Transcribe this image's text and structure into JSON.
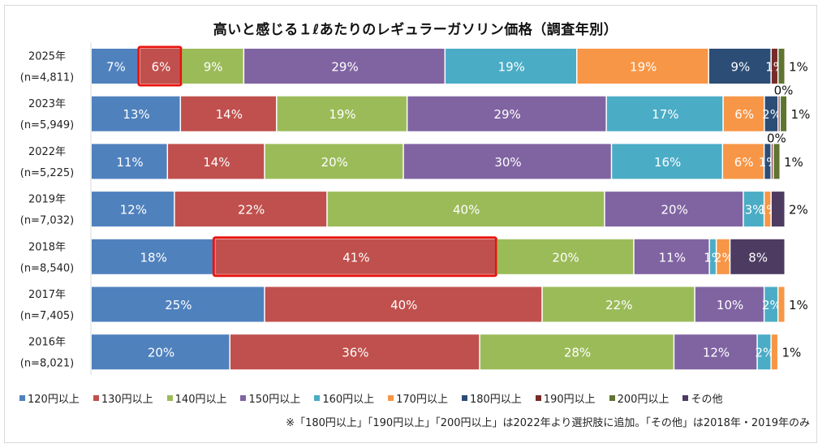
{
  "chart_data": {
    "type": "bar",
    "orientation": "horizontal",
    "stacked": "percent",
    "title": "高いと感じる１ℓあたりのレギュラーガソリン価格（調査年別）",
    "xlabel": "",
    "ylabel": "",
    "xlim": [
      0,
      100
    ],
    "grid": false,
    "legend_position": "bottom",
    "categories": [
      {
        "year": "2025年",
        "n": "(n=4,811)"
      },
      {
        "year": "2023年",
        "n": "(n=5,949)"
      },
      {
        "year": "2022年",
        "n": "(n=5,225)"
      },
      {
        "year": "2019年",
        "n": "(n=7,032)"
      },
      {
        "year": "2018年",
        "n": "(n=8,540)"
      },
      {
        "year": "2017年",
        "n": "(n=7,405)"
      },
      {
        "year": "2016年",
        "n": "(n=8,021)"
      }
    ],
    "series": [
      {
        "name": "120円以上",
        "color": "#4f81bd",
        "values": [
          7,
          13,
          11,
          12,
          18,
          25,
          20
        ]
      },
      {
        "name": "130円以上",
        "color": "#c0504d",
        "values": [
          6,
          14,
          14,
          22,
          41,
          40,
          36
        ]
      },
      {
        "name": "140円以上",
        "color": "#9bbb59",
        "values": [
          9,
          19,
          20,
          40,
          20,
          22,
          28
        ]
      },
      {
        "name": "150円以上",
        "color": "#8064a2",
        "values": [
          29,
          29,
          30,
          20,
          11,
          10,
          12
        ]
      },
      {
        "name": "160円以上",
        "color": "#4bacc6",
        "values": [
          19,
          17,
          16,
          3,
          1,
          2,
          2
        ]
      },
      {
        "name": "170円以上",
        "color": "#f79646",
        "values": [
          19,
          6,
          6,
          1,
          2,
          1,
          1
        ]
      },
      {
        "name": "180円以上",
        "color": "#2c4d75",
        "values": [
          9,
          2,
          1,
          null,
          null,
          null,
          null
        ]
      },
      {
        "name": "190円以上",
        "color": "#772c2a",
        "values": [
          1,
          0,
          0,
          null,
          null,
          null,
          null
        ]
      },
      {
        "name": "200円以上",
        "color": "#5f7530",
        "values": [
          1,
          1,
          1,
          null,
          null,
          null,
          null
        ]
      },
      {
        "name": "その他",
        "color": "#4d3b62",
        "values": [
          null,
          null,
          null,
          2,
          8,
          null,
          null
        ]
      }
    ],
    "highlights": [
      {
        "category": "2025年",
        "series": "130円以上",
        "outline_color": "#e8150f"
      },
      {
        "category": "2018年",
        "series": "130円以上",
        "outline_color": "#e8150f"
      }
    ],
    "note": "※「180円以上」「190円以上」「200円以上」は2022年より選択肢に追加。「その他」は2018年・2019年のみ"
  }
}
